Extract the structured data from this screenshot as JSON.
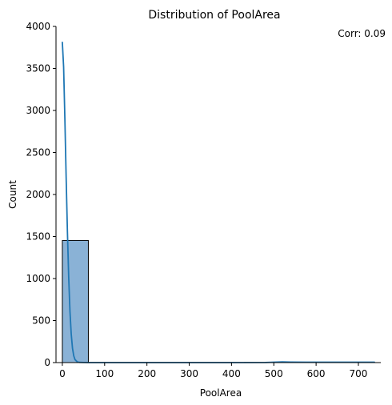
{
  "chart_data": {
    "type": "bar",
    "title": "Distribution of PoolArea",
    "xlabel": "PoolArea",
    "ylabel": "Count",
    "annotation": "Corr: 0.09",
    "xlim": [
      -15,
      753
    ],
    "ylim": [
      0,
      4000
    ],
    "xticks": [
      0,
      100,
      200,
      300,
      400,
      500,
      600,
      700
    ],
    "yticks": [
      0,
      500,
      1000,
      1500,
      2000,
      2500,
      3000,
      3500,
      4000
    ],
    "bins": [
      {
        "x0": 0,
        "x1": 61.5,
        "count": 1453
      },
      {
        "x0": 61.5,
        "x1": 123,
        "count": 0
      },
      {
        "x0": 123,
        "x1": 184.5,
        "count": 0
      },
      {
        "x0": 184.5,
        "x1": 246,
        "count": 0
      },
      {
        "x0": 246,
        "x1": 307.5,
        "count": 0
      },
      {
        "x0": 307.5,
        "x1": 369,
        "count": 0
      },
      {
        "x0": 369,
        "x1": 430.5,
        "count": 0
      },
      {
        "x0": 430.5,
        "x1": 492,
        "count": 1
      },
      {
        "x0": 492,
        "x1": 553.5,
        "count": 2
      },
      {
        "x0": 553.5,
        "x1": 615,
        "count": 1
      },
      {
        "x0": 615,
        "x1": 676.5,
        "count": 1
      },
      {
        "x0": 676.5,
        "x1": 738,
        "count": 2
      }
    ],
    "kde": {
      "x": [
        0,
        3,
        6,
        9,
        12,
        15,
        18,
        21,
        24,
        27,
        30,
        35,
        40,
        50,
        60,
        80,
        100,
        200,
        300,
        400,
        480,
        500,
        520,
        540,
        600,
        650,
        700,
        738
      ],
      "y": [
        3810,
        3520,
        2900,
        2200,
        1560,
        1020,
        610,
        340,
        170,
        80,
        35,
        10,
        3,
        1,
        0,
        0,
        0,
        0,
        0,
        0,
        1,
        5,
        8,
        6,
        4,
        4,
        5,
        4
      ]
    },
    "colors": {
      "bar_fill": "#8ab2d6",
      "bar_edge": "#000000",
      "kde_line": "#1f77b4"
    },
    "grid": false,
    "legend": "none"
  }
}
